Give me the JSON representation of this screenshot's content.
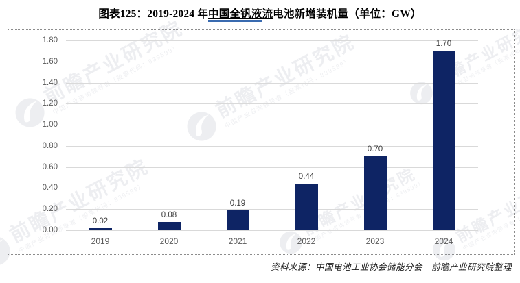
{
  "title": {
    "prefix": "图表125：2019-2024 年",
    "link_part1": "中国全钒液",
    "link_part2": "流",
    "suffix": "电池新增装机量（单位：GW）"
  },
  "chart_data": {
    "type": "bar",
    "title": "2019-2024年中国全钒液流电池新增装机量",
    "unit": "GW",
    "categories": [
      "2019",
      "2020",
      "2021",
      "2022",
      "2023",
      "2024"
    ],
    "values": [
      0.02,
      0.08,
      0.19,
      0.44,
      0.7,
      1.7
    ],
    "value_labels": [
      "0.02",
      "0.08",
      "0.19",
      "0.44",
      "0.70",
      "1.70"
    ],
    "xlabel": "",
    "ylabel": "",
    "ylim": [
      0,
      1.8
    ],
    "ytick_step": 0.2,
    "yticks": [
      "0.00",
      "0.20",
      "0.40",
      "0.60",
      "0.80",
      "1.00",
      "1.20",
      "1.40",
      "1.60",
      "1.80"
    ],
    "grid": true,
    "legend": false,
    "bar_color": "#0E2464"
  },
  "source": "资料来源：中国电池工业协会储能分会　前瞻产业研究院整理",
  "watermark": {
    "brand": "前瞻产业研究院",
    "tagline": "中国产业咨询领导者（股票代码：839599）"
  },
  "colors": {
    "bar": "#0E2464",
    "gridline": "#D9D9D9",
    "axis_text": "#595959",
    "value_text": "#404040",
    "title_underline_blue": "#3A6BB0"
  }
}
